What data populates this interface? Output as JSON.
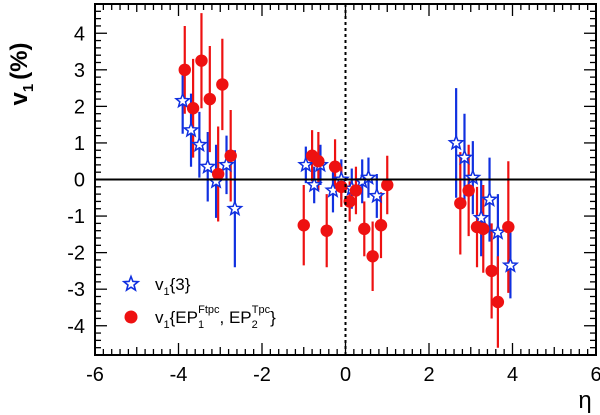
{
  "chart_data": {
    "type": "scatter",
    "xlabel": "η",
    "ylabel_main": "v",
    "ylabel_sub": "1",
    "ylabel_unit": "(%)",
    "xlim": [
      -6,
      6
    ],
    "ylim": [
      -4.8,
      4.8
    ],
    "xticks": [
      -6,
      -4,
      -2,
      0,
      2,
      4,
      6
    ],
    "xtick_labels": [
      "-6",
      "-4",
      "-2",
      "0",
      "2",
      "4",
      "6"
    ],
    "yticks": [
      -4,
      -3,
      -2,
      -1,
      0,
      1,
      2,
      3,
      4
    ],
    "ytick_labels": [
      "-4",
      "-3",
      "-2",
      "-1",
      "0",
      "1",
      "2",
      "3",
      "4"
    ],
    "reference_lines": {
      "y0": "solid",
      "x0": "dotted"
    },
    "legend": {
      "placement": "bottom-left",
      "star": {
        "main": "v",
        "sub": "1",
        "rest": "{3}"
      },
      "circle": {
        "main": "v",
        "sub": "1",
        "open": "{EP",
        "sub1": "1",
        "sup1": "Ftpc",
        "mid": ", EP",
        "sub2": "2",
        "sup2": "Tpc",
        "close": "}"
      }
    },
    "series": [
      {
        "name": "v1{3}",
        "marker": "open-star",
        "color": "#1030e0",
        "points": [
          {
            "x": -3.9,
            "y": 2.15,
            "err": 0.9
          },
          {
            "x": -3.7,
            "y": 1.35,
            "err": 1.0
          },
          {
            "x": -3.5,
            "y": 0.95,
            "err": 0.9
          },
          {
            "x": -3.3,
            "y": 0.35,
            "err": 0.95
          },
          {
            "x": -3.1,
            "y": -0.05,
            "err": 1.0
          },
          {
            "x": -2.85,
            "y": 0.4,
            "err": 0.8
          },
          {
            "x": -2.65,
            "y": -0.8,
            "err": 1.6
          },
          {
            "x": -0.95,
            "y": 0.4,
            "err": 0.5
          },
          {
            "x": -0.75,
            "y": -0.15,
            "err": 0.5
          },
          {
            "x": -0.6,
            "y": 0.4,
            "err": 0.55
          },
          {
            "x": -0.3,
            "y": -0.3,
            "err": 0.6
          },
          {
            "x": -0.1,
            "y": 0.0,
            "err": 0.55
          },
          {
            "x": 0.15,
            "y": -0.25,
            "err": 0.55
          },
          {
            "x": 0.4,
            "y": -0.05,
            "err": 0.6
          },
          {
            "x": 0.55,
            "y": 0.05,
            "err": 0.55
          },
          {
            "x": 0.75,
            "y": -0.45,
            "err": 0.6
          },
          {
            "x": 2.65,
            "y": 1.0,
            "err": 1.5
          },
          {
            "x": 2.85,
            "y": 0.6,
            "err": 1.2
          },
          {
            "x": 3.05,
            "y": 0.05,
            "err": 1.0
          },
          {
            "x": 3.25,
            "y": -1.05,
            "err": 1.05
          },
          {
            "x": 3.45,
            "y": -0.55,
            "err": 1.15
          },
          {
            "x": 3.65,
            "y": -1.45,
            "err": 1.05
          },
          {
            "x": 3.95,
            "y": -2.35,
            "err": 0.9
          }
        ]
      },
      {
        "name": "v1{EP1Ftpc, EP2Tpc}",
        "marker": "filled-circle",
        "color": "#ee1111",
        "points": [
          {
            "x": -3.85,
            "y": 3.0,
            "err": 1.2
          },
          {
            "x": -3.65,
            "y": 1.95,
            "err": 1.35
          },
          {
            "x": -3.45,
            "y": 3.25,
            "err": 1.3
          },
          {
            "x": -3.25,
            "y": 2.2,
            "err": 1.45
          },
          {
            "x": -3.05,
            "y": 0.15,
            "err": 1.3
          },
          {
            "x": -2.95,
            "y": 2.6,
            "err": 1.25
          },
          {
            "x": -2.75,
            "y": 0.65,
            "err": 1.25
          },
          {
            "x": -1.0,
            "y": -1.25,
            "err": 1.1
          },
          {
            "x": -0.8,
            "y": 0.65,
            "err": 0.7
          },
          {
            "x": -0.65,
            "y": 0.5,
            "err": 0.8
          },
          {
            "x": -0.45,
            "y": -1.4,
            "err": 1.0
          },
          {
            "x": -0.25,
            "y": 0.35,
            "err": 0.75
          },
          {
            "x": -0.1,
            "y": -0.2,
            "err": 0.55
          },
          {
            "x": 0.1,
            "y": -0.6,
            "err": 0.55
          },
          {
            "x": 0.25,
            "y": -0.3,
            "err": 0.65
          },
          {
            "x": 0.45,
            "y": -1.35,
            "err": 0.75
          },
          {
            "x": 0.65,
            "y": -2.1,
            "err": 0.95
          },
          {
            "x": 0.85,
            "y": -1.25,
            "err": 0.9
          },
          {
            "x": 1.0,
            "y": -0.15,
            "err": 0.8
          },
          {
            "x": 2.75,
            "y": -0.65,
            "err": 1.4
          },
          {
            "x": 2.95,
            "y": -0.3,
            "err": 1.25
          },
          {
            "x": 3.15,
            "y": -1.3,
            "err": 1.1
          },
          {
            "x": 3.3,
            "y": -1.35,
            "err": 1.2
          },
          {
            "x": 3.5,
            "y": -2.5,
            "err": 1.3
          },
          {
            "x": 3.65,
            "y": -3.35,
            "err": 1.25
          },
          {
            "x": 3.9,
            "y": -1.3,
            "err": 1.8
          }
        ]
      }
    ]
  }
}
